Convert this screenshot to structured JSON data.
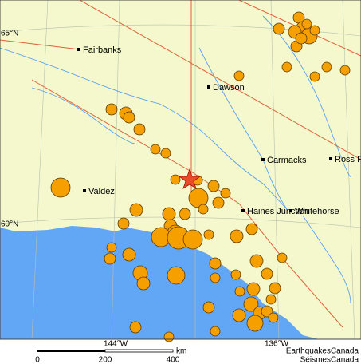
{
  "map": {
    "latitudes": [
      "65°N",
      "60°N"
    ],
    "longitudes": [
      "144°W",
      "136°W"
    ],
    "cities": [
      "Fairbanks",
      "Dawson",
      "Valdez",
      "Carmacks",
      "Ross R",
      "Haines Junction",
      "Whitehorse"
    ],
    "scale": {
      "ticks": [
        "0",
        "200",
        "400"
      ],
      "unit": "km"
    },
    "credits": [
      "EarthquakesCanada",
      "SéismesCanada"
    ]
  }
}
